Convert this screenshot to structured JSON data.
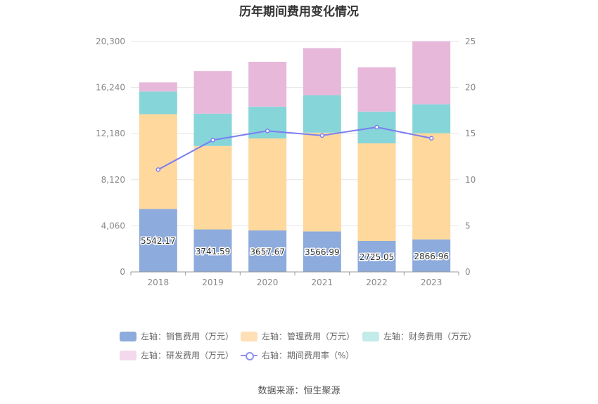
{
  "chart_data": {
    "type": "bar",
    "title": "历年期间费用变化情况",
    "categories": [
      "2018",
      "2019",
      "2020",
      "2021",
      "2022",
      "2023"
    ],
    "stacked": true,
    "left_axis": {
      "ticks": [
        "0",
        "4,060",
        "8,120",
        "12,180",
        "16,240",
        "20,300"
      ],
      "ylim": [
        0,
        20300
      ]
    },
    "right_axis": {
      "ticks": [
        "0",
        "5",
        "10",
        "15",
        "20",
        "25"
      ],
      "ylim": [
        0,
        25
      ]
    },
    "grid": true,
    "legend_position": "bottom",
    "series": [
      {
        "name": "左轴：销售费用（万元）",
        "axis": "left",
        "type": "bar",
        "color": "#8dabdc",
        "values": [
          5542.17,
          3741.59,
          3657.67,
          3566.99,
          2725.05,
          2866.96
        ],
        "labels": [
          "5542.17",
          "3741.59",
          "3657.67",
          "3566.99",
          "2725.05",
          "2866.96"
        ]
      },
      {
        "name": "左轴：管理费用（万元）",
        "axis": "left",
        "type": "bar",
        "color": "#fed89c",
        "values": [
          8350,
          7350,
          8100,
          8700,
          8600,
          9350
        ]
      },
      {
        "name": "左轴：财务费用（万元）",
        "axis": "left",
        "type": "bar",
        "color": "#86d5d9",
        "values": [
          2000,
          2850,
          2800,
          3300,
          2800,
          2550
        ]
      },
      {
        "name": "左轴：研发费用（万元）",
        "axis": "left",
        "type": "bar",
        "color": "#e7b8d9",
        "values": [
          800,
          3750,
          3950,
          4150,
          3900,
          5550
        ]
      },
      {
        "name": "右轴：期间费用率（%）",
        "axis": "right",
        "type": "line",
        "color": "#7b7ef0",
        "values": [
          11.1,
          14.3,
          15.3,
          14.8,
          15.7,
          14.5
        ]
      }
    ]
  },
  "legend_colors": {
    "sales": "#8dabdc",
    "admin": "#fedfb6",
    "finance": "#c3ebea",
    "rd": "#f3d9ec"
  },
  "source": "数据来源：恒生聚源"
}
